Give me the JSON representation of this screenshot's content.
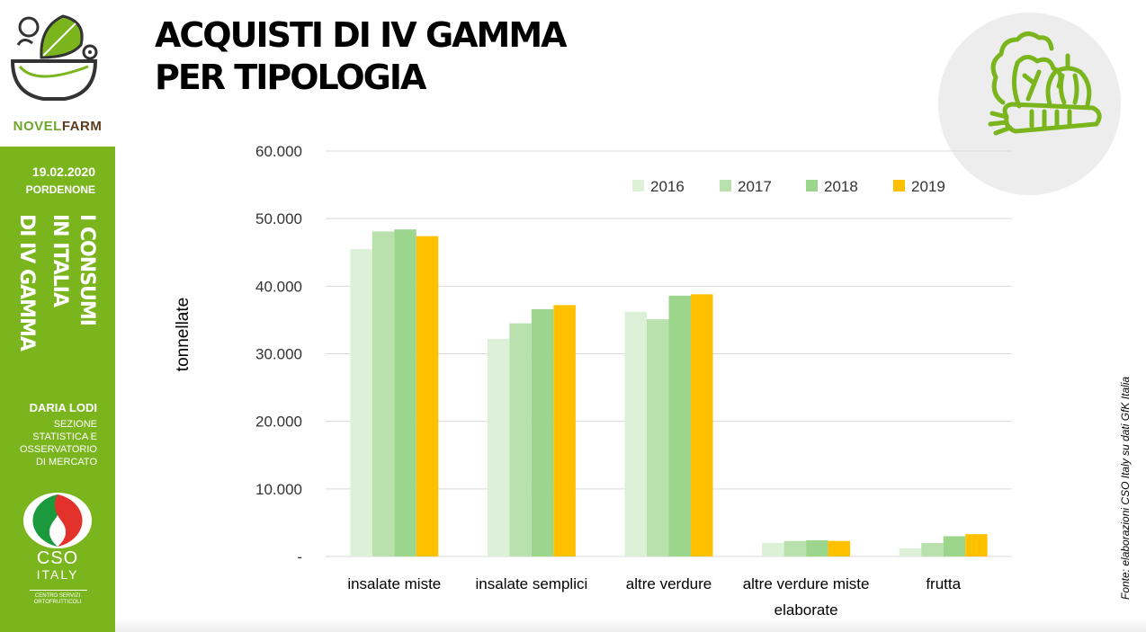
{
  "sidebar": {
    "brand_nov": "NOV",
    "brand_e": "E",
    "brand_l": "L",
    "brand_farm": "FARM",
    "date": "19.02.2020",
    "city": "PORDENONE",
    "vertical_title": [
      "I CONSUMI",
      "IN ITALIA",
      "DI IV GAMMA"
    ],
    "author": "DARIA LODI",
    "role": [
      "SEZIONE",
      "STATISTICA E",
      "OSSERVATORIO",
      "DI MERCATO"
    ],
    "cso_name": "CSO",
    "cso_country": "ITALY",
    "cso_sub1": "CENTRO SERVIZI",
    "cso_sub2": "ORTOFRUTTICOLI"
  },
  "header": {
    "title_line1": "ACQUISTI DI IV GAMMA",
    "title_line2": "PER TIPOLOGIA"
  },
  "source": "Fonte: elaborazioni CSO Italy su dati GfK Italia",
  "colors": {
    "green_panel": "#7ab51d",
    "s2016": "#ddf1d8",
    "s2017": "#b9e1ae",
    "s2018": "#9cd68d",
    "s2019": "#ffc000"
  },
  "chart_data": {
    "type": "bar",
    "ylabel": "tonnellate",
    "ylim": [
      0,
      60000
    ],
    "yticks": [
      "-",
      "10.000",
      "20.000",
      "30.000",
      "40.000",
      "50.000",
      "60.000"
    ],
    "categories": [
      [
        "insalate miste"
      ],
      [
        "insalate semplici"
      ],
      [
        "altre verdure"
      ],
      [
        "altre verdure miste",
        "elaborate"
      ],
      [
        "frutta"
      ]
    ],
    "series": [
      {
        "name": "2016",
        "color": "#ddf1d8",
        "values": [
          45500,
          32200,
          36200,
          2000,
          1200
        ]
      },
      {
        "name": "2017",
        "color": "#b9e1ae",
        "values": [
          48100,
          34500,
          35100,
          2300,
          2000
        ]
      },
      {
        "name": "2018",
        "color": "#9cd68d",
        "values": [
          48400,
          36600,
          38600,
          2400,
          3000
        ]
      },
      {
        "name": "2019",
        "color": "#ffc000",
        "values": [
          47400,
          37200,
          38800,
          2300,
          3300
        ]
      }
    ],
    "legend_position": "top-right",
    "grid": true
  }
}
